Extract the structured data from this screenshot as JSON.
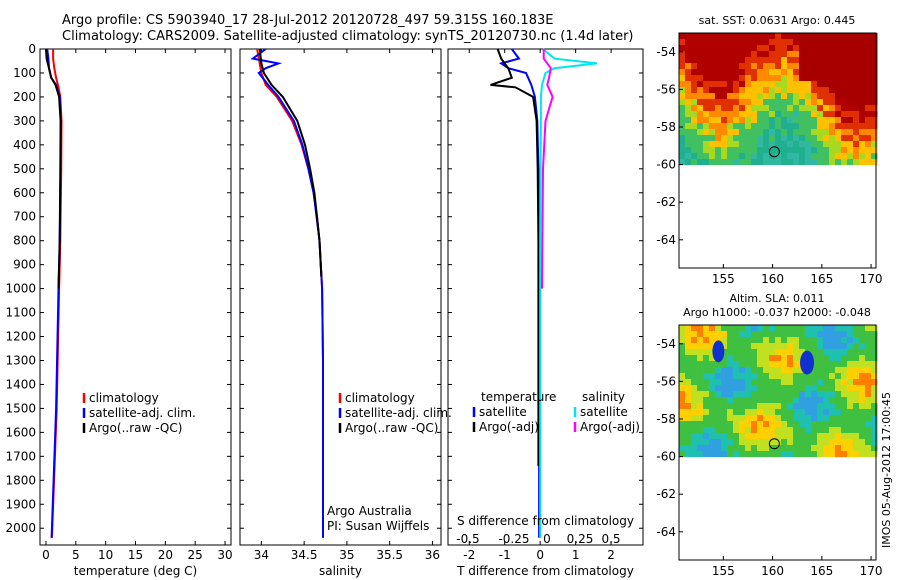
{
  "header": {
    "line1": "Argo profile: CS 5903940_17 28-Jul-2012 20120728_497 59.315S 160.183E",
    "line2": "Climatology: CARS2009. Satellite-adjusted climatology: synTS_20120730.nc (1.4d later)"
  },
  "timestamp": "IMOS 05-Aug-2012 17:00:45",
  "colors": {
    "climatology": "#ff0000",
    "satellite": "#0000ff",
    "argo": "#000000",
    "sal_satellite": "#00e5ee",
    "sal_argo": "#ff00ff"
  },
  "chart_data": [
    {
      "type": "line",
      "id": "temperature",
      "xlabel": "temperature (deg C)",
      "xlim": [
        -1,
        31
      ],
      "ylim": [
        0,
        2070
      ],
      "y_inverted": true,
      "xticks": [
        0,
        5,
        10,
        15,
        20,
        25,
        30
      ],
      "yticks": [
        0,
        100,
        200,
        300,
        400,
        500,
        600,
        700,
        800,
        900,
        1000,
        1100,
        1200,
        1300,
        1400,
        1500,
        1600,
        1700,
        1800,
        1900,
        2000
      ],
      "legend": [
        "climatology",
        "satellite-adj. clim.",
        "Argo(..raw -QC)"
      ],
      "series": [
        {
          "name": "climatology",
          "color": "#ff0000",
          "depth": [
            0,
            40,
            80,
            120,
            160,
            200,
            300,
            500,
            800,
            1000,
            1500,
            2040
          ],
          "values": [
            1.2,
            1.2,
            1.4,
            1.7,
            2.1,
            2.4,
            2.6,
            2.55,
            2.4,
            2.2,
            1.8,
            1.0
          ]
        },
        {
          "name": "satellite-adj. clim.",
          "color": "#0000ff",
          "depth": [
            0,
            40,
            80,
            120,
            150,
            200,
            300,
            500,
            800,
            1000,
            1500,
            2040
          ],
          "values": [
            0.2,
            0.4,
            0.5,
            0.9,
            1.7,
            2.3,
            2.5,
            2.45,
            2.3,
            2.1,
            1.7,
            0.95
          ]
        },
        {
          "name": "Argo(..raw -QC)",
          "color": "#000000",
          "depth": [
            0,
            40,
            80,
            120,
            150,
            200,
            300,
            500,
            800,
            1000
          ],
          "values": [
            0.0,
            0.1,
            0.5,
            0.9,
            1.6,
            2.2,
            2.45,
            2.4,
            2.3,
            2.1
          ]
        }
      ]
    },
    {
      "type": "line",
      "id": "salinity",
      "xlabel": "salinity",
      "xlim": [
        33.75,
        36.1
      ],
      "ylim": [
        0,
        2070
      ],
      "y_inverted": true,
      "xticks": [
        34,
        34.5,
        35,
        35.5,
        36
      ],
      "legend": [
        "climatology",
        "satellite-adj. clim.",
        "Argo(..raw -QC)"
      ],
      "annotation": [
        "Argo Australia",
        "PI: Susan Wijffels"
      ],
      "series": [
        {
          "name": "climatology",
          "color": "#ff0000",
          "depth": [
            0,
            60,
            100,
            150,
            200,
            300,
            400,
            500,
            600,
            700,
            800,
            1000,
            1300,
            1600,
            2040
          ],
          "values": [
            33.95,
            33.98,
            34.0,
            34.05,
            34.18,
            34.36,
            34.47,
            34.55,
            34.61,
            34.65,
            34.68,
            34.71,
            34.72,
            34.72,
            34.72
          ]
        },
        {
          "name": "satellite-adj. clim.",
          "color": "#0000ff",
          "depth": [
            0,
            40,
            60,
            80,
            100,
            150,
            200,
            300,
            400,
            500,
            600,
            800,
            1000,
            1300,
            1600,
            2040
          ],
          "values": [
            34.05,
            33.9,
            34.2,
            34.05,
            33.97,
            34.08,
            34.2,
            34.38,
            34.48,
            34.55,
            34.61,
            34.68,
            34.71,
            34.72,
            34.72,
            34.72
          ]
        },
        {
          "name": "Argo(..raw -QC)",
          "color": "#000000",
          "depth": [
            0,
            60,
            100,
            150,
            200,
            300,
            400,
            500,
            600,
            700,
            800,
            950
          ],
          "values": [
            33.98,
            34.0,
            34.03,
            34.12,
            34.25,
            34.42,
            34.51,
            34.57,
            34.62,
            34.65,
            34.68,
            34.7
          ]
        }
      ]
    },
    {
      "type": "line",
      "id": "difference",
      "xlabel": "T difference from climatology",
      "xlabel_top": "S difference from climatology",
      "xlim": [
        -2.6,
        2.9
      ],
      "xticks": [
        -2,
        -1,
        0,
        1,
        2
      ],
      "xticks_top": [
        -0.5,
        -0.25,
        0,
        0.25,
        0.5
      ],
      "ylim": [
        0,
        2070
      ],
      "y_inverted": true,
      "legend_titles": [
        "temperature",
        "salinity"
      ],
      "legend": [
        "satellite",
        "Argo(-adj)",
        "satellite",
        "Argo(-adj)"
      ],
      "series": [
        {
          "name": "temperature satellite",
          "color": "#0000ff",
          "depth": [
            0,
            40,
            60,
            80,
            100,
            150,
            200,
            300,
            500,
            800,
            1000,
            1500,
            2040
          ],
          "values": [
            -0.8,
            -0.6,
            -1.1,
            -0.9,
            -0.4,
            -0.25,
            -0.15,
            -0.08,
            -0.05,
            -0.04,
            -0.04,
            -0.03,
            -0.03
          ]
        },
        {
          "name": "temperature Argo(-adj)",
          "color": "#000000",
          "depth": [
            0,
            40,
            80,
            120,
            150,
            160,
            200,
            300,
            500,
            800,
            1000,
            1500,
            1740
          ],
          "values": [
            -1.2,
            -1.1,
            -0.9,
            -0.8,
            -1.4,
            -0.7,
            -0.2,
            -0.1,
            -0.07,
            -0.05,
            -0.05,
            -0.05,
            -0.05
          ]
        },
        {
          "name": "salinity satellite",
          "color": "#00e5ee",
          "depth": [
            0,
            40,
            60,
            80,
            100,
            150,
            200,
            300,
            500,
            800,
            1000,
            1500,
            2040
          ],
          "values": [
            0.08,
            0.4,
            1.6,
            0.4,
            0.15,
            0.05,
            0.02,
            0.02,
            0.01,
            0.0,
            0.0,
            0.0,
            0.0
          ]
        },
        {
          "name": "salinity Argo(-adj)",
          "color": "#ff00ff",
          "depth": [
            0,
            40,
            80,
            120,
            150,
            200,
            250,
            300,
            500,
            800,
            1000
          ],
          "values": [
            0.1,
            0.1,
            0.3,
            0.25,
            0.2,
            0.35,
            0.25,
            0.15,
            0.08,
            0.06,
            0.05
          ]
        }
      ]
    },
    {
      "type": "heatmap",
      "id": "sst_map",
      "title": "sat. SST: 0.0631  Argo: 0.445",
      "xlim": [
        150.5,
        170.5
      ],
      "ylim": [
        -65.5,
        -53
      ],
      "xticks": [
        155,
        160,
        165,
        170
      ],
      "yticks": [
        -54,
        -56,
        -58,
        -60,
        -62,
        -64
      ],
      "marker": {
        "lon": 160.183,
        "lat": -59.315
      }
    },
    {
      "type": "heatmap",
      "id": "sla_map",
      "title": "Altim. SLA: 0.011",
      "subtitle": "Argo h1000: -0.037 h2000: -0.048",
      "xlim": [
        150.5,
        170.5
      ],
      "ylim": [
        -65.5,
        -53
      ],
      "xticks": [
        155,
        160,
        165,
        170
      ],
      "yticks": [
        -54,
        -56,
        -58,
        -60,
        -62,
        -64
      ],
      "marker": {
        "lon": 160.183,
        "lat": -59.315
      }
    }
  ]
}
